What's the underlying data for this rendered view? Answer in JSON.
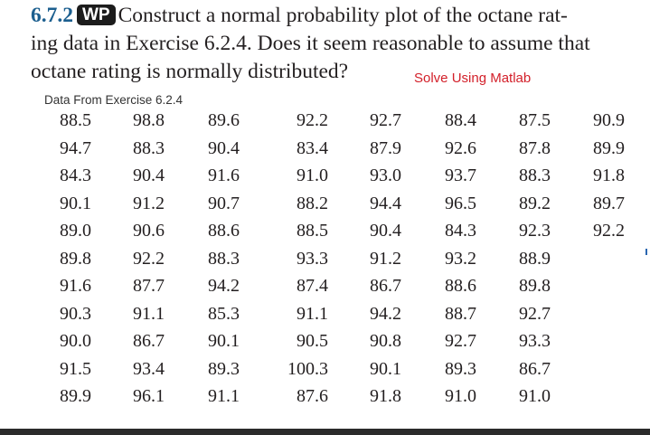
{
  "problem": {
    "number": "6.7.2",
    "badge": "WP",
    "line1": "Construct a normal probability plot of the octane rat-",
    "line2": "ing data in Exercise 6.2.4. Does it seem reasonable to assume that",
    "line3": "octane rating is normally distributed?"
  },
  "note": "Solve Using Matlab",
  "subtitle": "Data From Exercise 6.2.4",
  "table": {
    "rows": [
      [
        "88.5",
        "98.8",
        "89.6",
        "92.2",
        "92.7",
        "88.4",
        "87.5",
        "90.9"
      ],
      [
        "94.7",
        "88.3",
        "90.4",
        "83.4",
        "87.9",
        "92.6",
        "87.8",
        "89.9"
      ],
      [
        "84.3",
        "90.4",
        "91.6",
        "91.0",
        "93.0",
        "93.7",
        "88.3",
        "91.8"
      ],
      [
        "90.1",
        "91.2",
        "90.7",
        "88.2",
        "94.4",
        "96.5",
        "89.2",
        "89.7"
      ],
      [
        "89.0",
        "90.6",
        "88.6",
        "88.5",
        "90.4",
        "84.3",
        "92.3",
        "92.2"
      ],
      [
        "89.8",
        "92.2",
        "88.3",
        "93.3",
        "91.2",
        "93.2",
        "88.9",
        ""
      ],
      [
        "91.6",
        "87.7",
        "94.2",
        "87.4",
        "86.7",
        "88.6",
        "89.8",
        ""
      ],
      [
        "90.3",
        "91.1",
        "85.3",
        "91.1",
        "94.2",
        "88.7",
        "92.7",
        ""
      ],
      [
        "90.0",
        "86.7",
        "90.1",
        "90.5",
        "90.8",
        "92.7",
        "93.3",
        ""
      ],
      [
        "91.5",
        "93.4",
        "89.3",
        "100.3",
        "90.1",
        "89.3",
        "86.7",
        ""
      ],
      [
        "89.9",
        "96.1",
        "91.1",
        "87.6",
        "91.8",
        "91.0",
        "91.0",
        ""
      ]
    ]
  }
}
